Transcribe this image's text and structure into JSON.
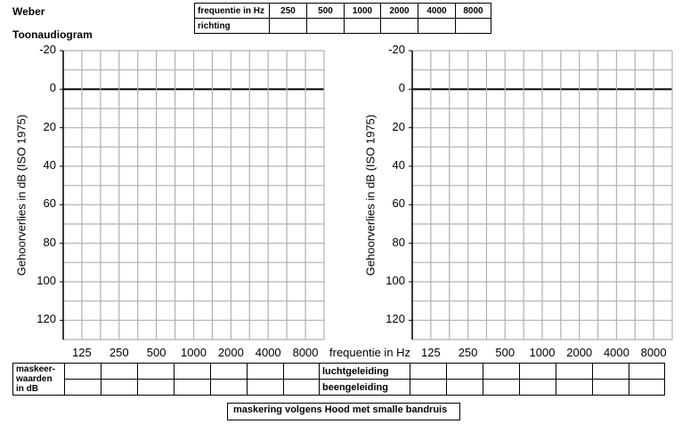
{
  "header": {
    "weber": "Weber",
    "title": "Toonaudiogram"
  },
  "freq_table": {
    "row1_label": "frequentie in Hz",
    "row2_label": "richting",
    "freqs": [
      "250",
      "500",
      "1000",
      "2000",
      "4000",
      "8000"
    ]
  },
  "chart_data": [
    {
      "type": "line",
      "title": "",
      "xlabel": "",
      "ylabel": "Gehoorverlies in dB (ISO 1975)",
      "categories": [
        "125",
        "250",
        "500",
        "1000",
        "2000",
        "4000",
        "8000"
      ],
      "yticks": [
        "-20",
        "0",
        "20",
        "40",
        "60",
        "80",
        "100",
        "120"
      ],
      "ylim": [
        -20,
        130
      ],
      "grid": true,
      "series": []
    },
    {
      "type": "line",
      "title": "",
      "xlabel": "frequentie in Hz",
      "ylabel": "Gehoorverlies in dB (ISO 1975)",
      "categories": [
        "125",
        "250",
        "500",
        "1000",
        "2000",
        "4000",
        "8000"
      ],
      "yticks": [
        "-20",
        "0",
        "20",
        "40",
        "60",
        "80",
        "100",
        "120"
      ],
      "ylim": [
        -20,
        130
      ],
      "grid": true,
      "series": []
    }
  ],
  "mask_table": {
    "label_line1": "maskeer-",
    "label_line2": "waarden",
    "label_line3": "in dB",
    "row1": "luchtgeleiding",
    "row2": "beengeleiding"
  },
  "footer_note": "maskering volgens Hood met smalle bandruis"
}
